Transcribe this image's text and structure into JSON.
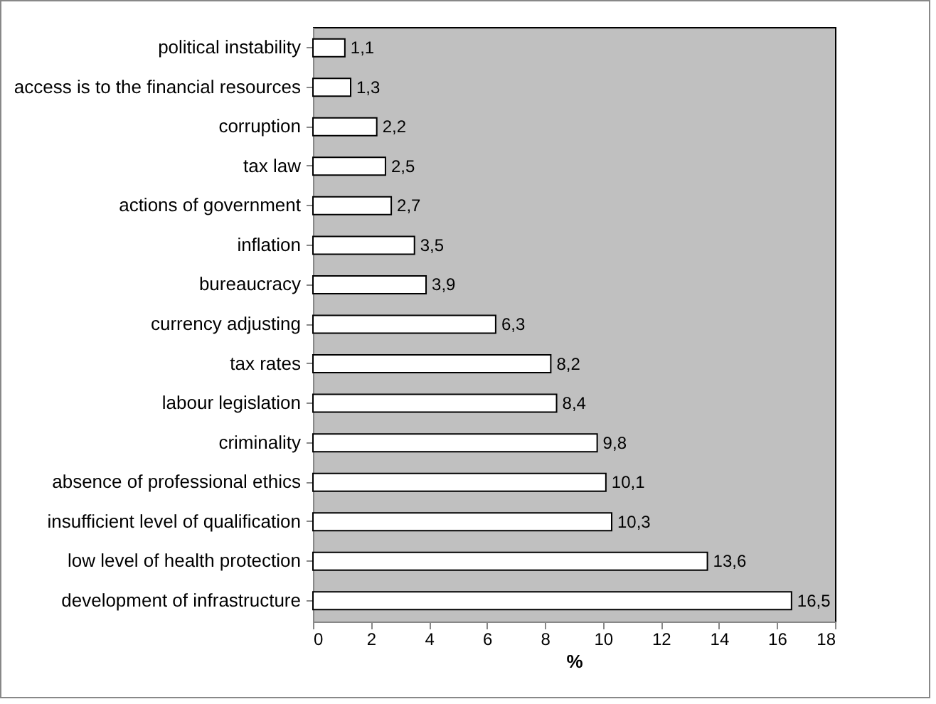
{
  "chart_data": {
    "type": "bar",
    "orientation": "horizontal",
    "xlabel": "%",
    "categories": [
      "political instability",
      "access is to the financial resources",
      "corruption",
      "tax law",
      "actions of government",
      "inflation",
      "bureaucracy",
      "currency adjusting",
      "tax rates",
      "labour legislation",
      "criminality",
      "absence of professional ethics",
      "insufficient level of qualification",
      "low level of health protection",
      "development of infrastructure"
    ],
    "values": [
      1.1,
      1.3,
      2.2,
      2.5,
      2.7,
      3.5,
      3.9,
      6.3,
      8.2,
      8.4,
      9.8,
      10.1,
      10.3,
      13.6,
      16.5
    ],
    "value_labels": [
      "1,1",
      "1,3",
      "2,2",
      "2,5",
      "2,7",
      "3,5",
      "3,9",
      "6,3",
      "8,2",
      "8,4",
      "9,8",
      "10,1",
      "10,3",
      "13,6",
      "16,5"
    ],
    "color": "#ffffff",
    "xlim": [
      0,
      18
    ],
    "xticks": [
      0,
      2,
      4,
      6,
      8,
      10,
      12,
      14,
      16,
      18
    ],
    "grid": false
  }
}
